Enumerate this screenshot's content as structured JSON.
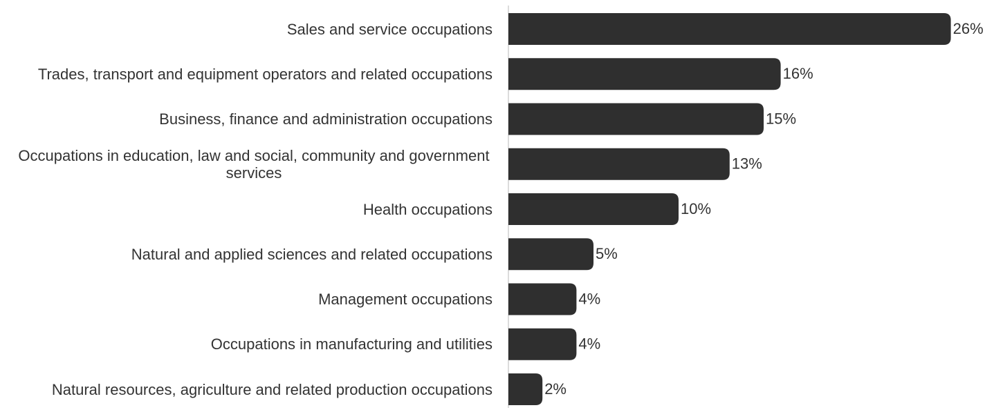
{
  "chart_data": {
    "type": "bar",
    "orientation": "horizontal",
    "categories": [
      "Sales and service occupations",
      "Trades, transport and equipment operators and related occupations",
      "Business, finance and administration occupations",
      "Occupations in education, law and social, community and government services",
      "Health occupations",
      "Natural and applied sciences and related occupations",
      "Management occupations",
      "Occupations in manufacturing and utilities",
      "Natural resources, agriculture and related production occupations"
    ],
    "values": [
      26,
      16,
      15,
      13,
      10,
      5,
      4,
      4,
      2
    ],
    "value_labels": [
      "26%",
      "16%",
      "15%",
      "13%",
      "10%",
      "5%",
      "4%",
      "4%",
      "2%"
    ],
    "color": "#2f2f2f"
  }
}
